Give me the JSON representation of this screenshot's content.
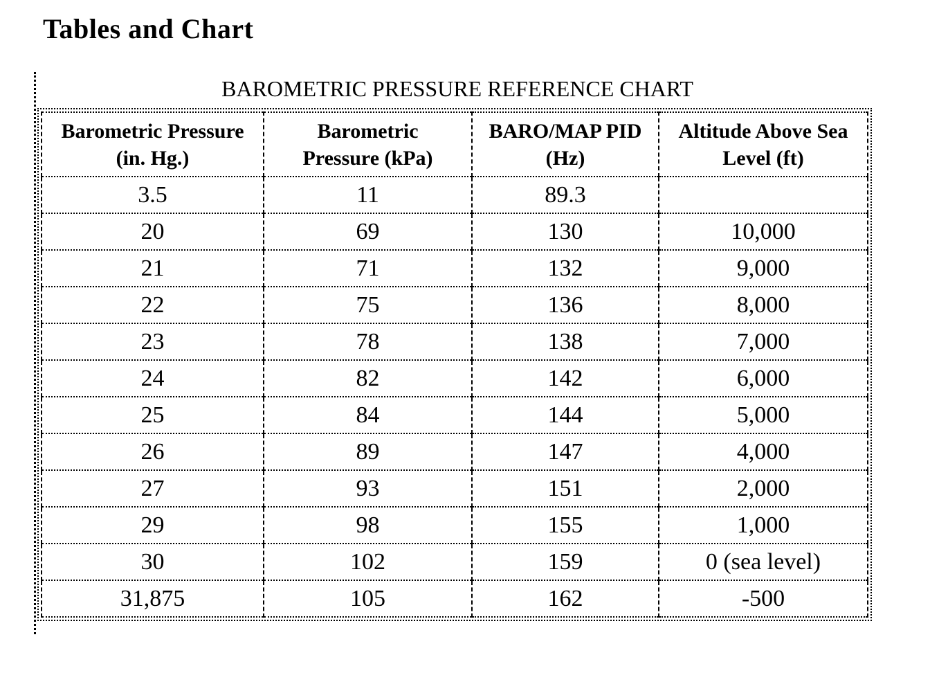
{
  "page": {
    "heading": "Tables and Chart"
  },
  "table": {
    "title": "BAROMETRIC PRESSURE REFERENCE CHART",
    "columns": [
      {
        "label": "Barometric Pressure\n(in. Hg.)"
      },
      {
        "label": "Barometric\nPressure (kPa)"
      },
      {
        "label": "BARO/MAP PID\n(Hz)"
      },
      {
        "label": "Altitude Above Sea\nLevel (ft)"
      }
    ],
    "rows": [
      [
        "3.5",
        "11",
        "89.3",
        ""
      ],
      [
        "20",
        "69",
        "130",
        "10,000"
      ],
      [
        "21",
        "71",
        "132",
        "9,000"
      ],
      [
        "22",
        "75",
        "136",
        "8,000"
      ],
      [
        "23",
        "78",
        "138",
        "7,000"
      ],
      [
        "24",
        "82",
        "142",
        "6,000"
      ],
      [
        "25",
        "84",
        "144",
        "5,000"
      ],
      [
        "26",
        "89",
        "147",
        "4,000"
      ],
      [
        "27",
        "93",
        "151",
        "2,000"
      ],
      [
        "29",
        "98",
        "155",
        "1,000"
      ],
      [
        "30",
        "102",
        "159",
        "0 (sea level)"
      ],
      [
        "31,875",
        "105",
        "162",
        "-500"
      ]
    ]
  },
  "chart_data": {
    "type": "table",
    "title": "BAROMETRIC PRESSURE REFERENCE CHART",
    "columns": [
      "Barometric Pressure (in. Hg.)",
      "Barometric Pressure (kPa)",
      "BARO/MAP PID (Hz)",
      "Altitude Above Sea Level (ft)"
    ],
    "rows": [
      [
        "3.5",
        "11",
        "89.3",
        ""
      ],
      [
        "20",
        "69",
        "130",
        "10,000"
      ],
      [
        "21",
        "71",
        "132",
        "9,000"
      ],
      [
        "22",
        "75",
        "136",
        "8,000"
      ],
      [
        "23",
        "78",
        "138",
        "7,000"
      ],
      [
        "24",
        "82",
        "142",
        "6,000"
      ],
      [
        "25",
        "84",
        "144",
        "5,000"
      ],
      [
        "26",
        "89",
        "147",
        "4,000"
      ],
      [
        "27",
        "93",
        "151",
        "2,000"
      ],
      [
        "29",
        "98",
        "155",
        "1,000"
      ],
      [
        "30",
        "102",
        "159",
        "0 (sea level)"
      ],
      [
        "31,875",
        "105",
        "162",
        "-500"
      ]
    ]
  }
}
